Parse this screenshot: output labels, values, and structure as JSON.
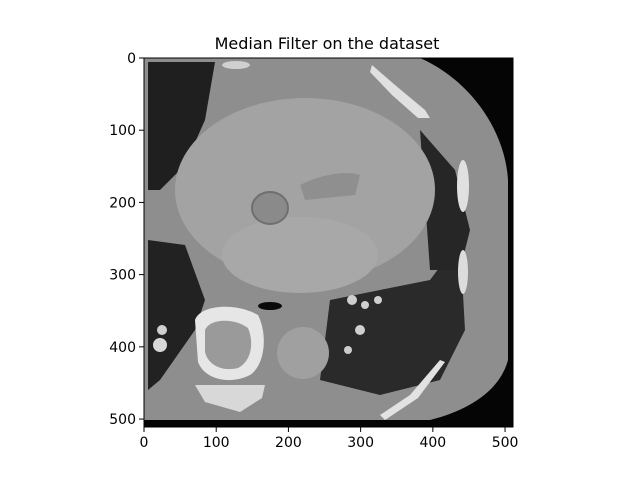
{
  "figure": {
    "title": "Median Filter on the dataset",
    "image_description_colors": {
      "background": "#000000",
      "tissue": "#8c8c8c",
      "heart": "#9e9e9e",
      "bone": "#e8e8e8",
      "lung": "#1a1a1a"
    }
  },
  "chart_data": {
    "type": "image",
    "title": "Median Filter on the dataset",
    "xlim": [
      0,
      511
    ],
    "ylim": [
      511,
      0
    ],
    "xticks": [
      0,
      100,
      200,
      300,
      400,
      500
    ],
    "yticks": [
      0,
      100,
      200,
      300,
      400,
      500
    ],
    "xtick_labels": [
      "0",
      "100",
      "200",
      "300",
      "400",
      "500"
    ],
    "ytick_labels": [
      "0",
      "100",
      "200",
      "300",
      "400",
      "500"
    ]
  }
}
